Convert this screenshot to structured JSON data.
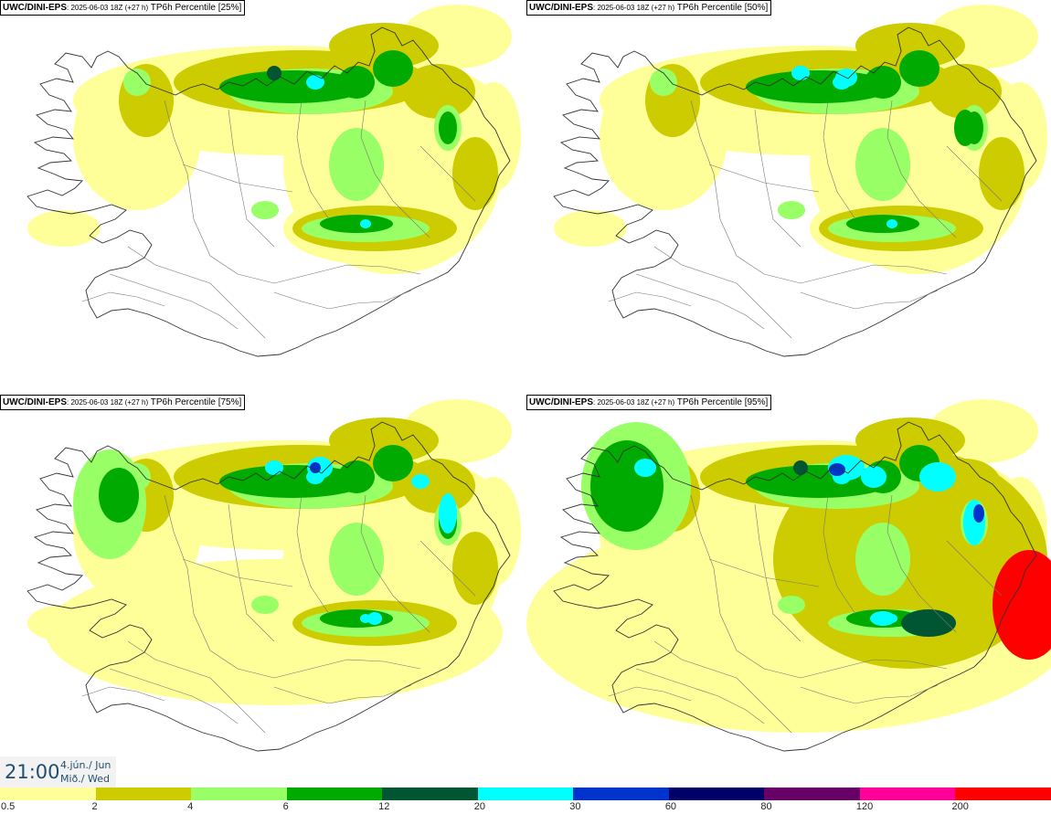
{
  "panels": [
    {
      "model": "UWC/DINI-EPS",
      "run": ": 2025-06-03 18Z (+27 h)",
      "variable": " TP6h Percentile [25%]",
      "percentile": 25
    },
    {
      "model": "UWC/DINI-EPS",
      "run": ": 2025-06-03 18Z (+27 h)",
      "variable": " TP6h Percentile [50%]",
      "percentile": 50
    },
    {
      "model": "UWC/DINI-EPS",
      "run": ": 2025-06-03 18Z (+27 h)",
      "variable": " TP6h Percentile [75%]",
      "percentile": 75
    },
    {
      "model": "UWC/DINI-EPS",
      "run": ": 2025-06-03 18Z (+27 h)",
      "variable": " TP6h Percentile [95%]",
      "percentile": 95
    }
  ],
  "valid_time": {
    "time": "21:00",
    "date": "4.jún./ Jun",
    "weekday": "Mið./ Wed"
  },
  "legend": {
    "labels": [
      "0.5",
      "2",
      "4",
      "6",
      "12",
      "20",
      "30",
      "60",
      "80",
      "120",
      "200"
    ],
    "colors": [
      "#ffff99",
      "#cccc00",
      "#99ff66",
      "#00aa00",
      "#005533",
      "#00ffff",
      "#0033cc",
      "#000066",
      "#660066",
      "#ff0099",
      "#ff0000"
    ]
  }
}
